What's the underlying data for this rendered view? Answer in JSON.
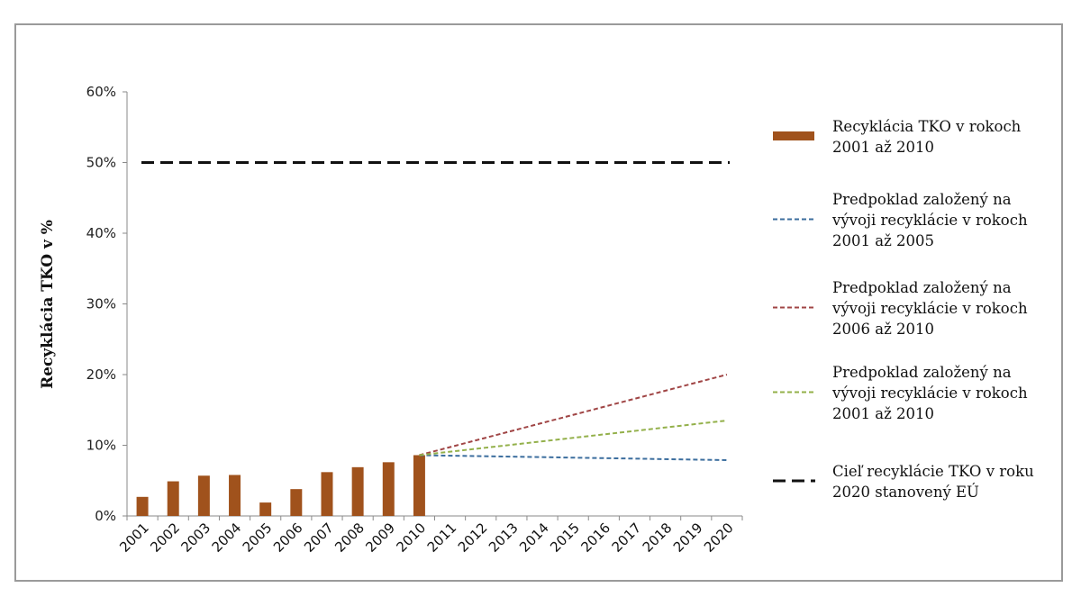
{
  "chart_data": {
    "type": "bar",
    "title": "",
    "xlabel": "",
    "ylabel": "Recyklácia TKO v %",
    "ylim": [
      0,
      60
    ],
    "yticks": [
      "0%",
      "10%",
      "20%",
      "30%",
      "40%",
      "50%",
      "60%"
    ],
    "categories": [
      "2001",
      "2002",
      "2003",
      "2004",
      "2005",
      "2006",
      "2007",
      "2008",
      "2009",
      "2010",
      "2011",
      "2012",
      "2013",
      "2014",
      "2015",
      "2016",
      "2017",
      "2018",
      "2019",
      "2020"
    ],
    "grid": false,
    "legend_position": "right",
    "series": [
      {
        "name": "Recyklácia TKO v rokoch 2001 až 2010",
        "kind": "bar",
        "color": "#a0521c",
        "x": [
          "2001",
          "2002",
          "2003",
          "2004",
          "2005",
          "2006",
          "2007",
          "2008",
          "2009",
          "2010"
        ],
        "values": [
          2.7,
          4.9,
          5.7,
          5.8,
          1.9,
          3.8,
          6.2,
          6.9,
          7.6,
          8.6
        ]
      },
      {
        "name": "Predpoklad založený na vývoji recyklácie v rokoch 2001 až 2005",
        "kind": "dashed-line",
        "color": "#3c6e9e",
        "x": [
          "2010",
          "2020"
        ],
        "values": [
          8.6,
          7.9
        ]
      },
      {
        "name": "Predpoklad založený na vývoji recyklácie v rokoch 2006 až 2010",
        "kind": "dashed-line",
        "color": "#a04545",
        "x": [
          "2010",
          "2020"
        ],
        "values": [
          8.6,
          20.0
        ]
      },
      {
        "name": "Predpoklad založený na vývoji recyklácie v rokoch 2001 až 2010",
        "kind": "dashed-line",
        "color": "#93b04a",
        "x": [
          "2010",
          "2020"
        ],
        "values": [
          8.6,
          13.5
        ]
      },
      {
        "name": "Cieľ recyklácie TKO v roku 2020 stanovený EÚ",
        "kind": "long-dash-line",
        "color": "#111111",
        "x": [
          "2001",
          "2020"
        ],
        "values": [
          50,
          50
        ]
      }
    ],
    "legend": [
      {
        "lines": [
          "Recyklácia TKO v rokoch",
          "2001 až 2010"
        ],
        "icon": "bar-swatch",
        "color": "#a0521c"
      },
      {
        "lines": [
          "Predpoklad založený na",
          "vývoji recyklácie v rokoch",
          "2001 až 2005"
        ],
        "icon": "dashed",
        "color": "#3c6e9e"
      },
      {
        "lines": [
          "Predpoklad založený na",
          "vývoji recyklácie v rokoch",
          "2006 až 2010"
        ],
        "icon": "dashed",
        "color": "#a04545"
      },
      {
        "lines": [
          "Predpoklad založený na",
          "vývoji recyklácie v rokoch",
          "2001 až 2010"
        ],
        "icon": "dashed",
        "color": "#93b04a"
      },
      {
        "lines": [
          "Cieľ recyklácie TKO v roku",
          "2020 stanovený EÚ"
        ],
        "icon": "long-dash",
        "color": "#111111"
      }
    ]
  }
}
